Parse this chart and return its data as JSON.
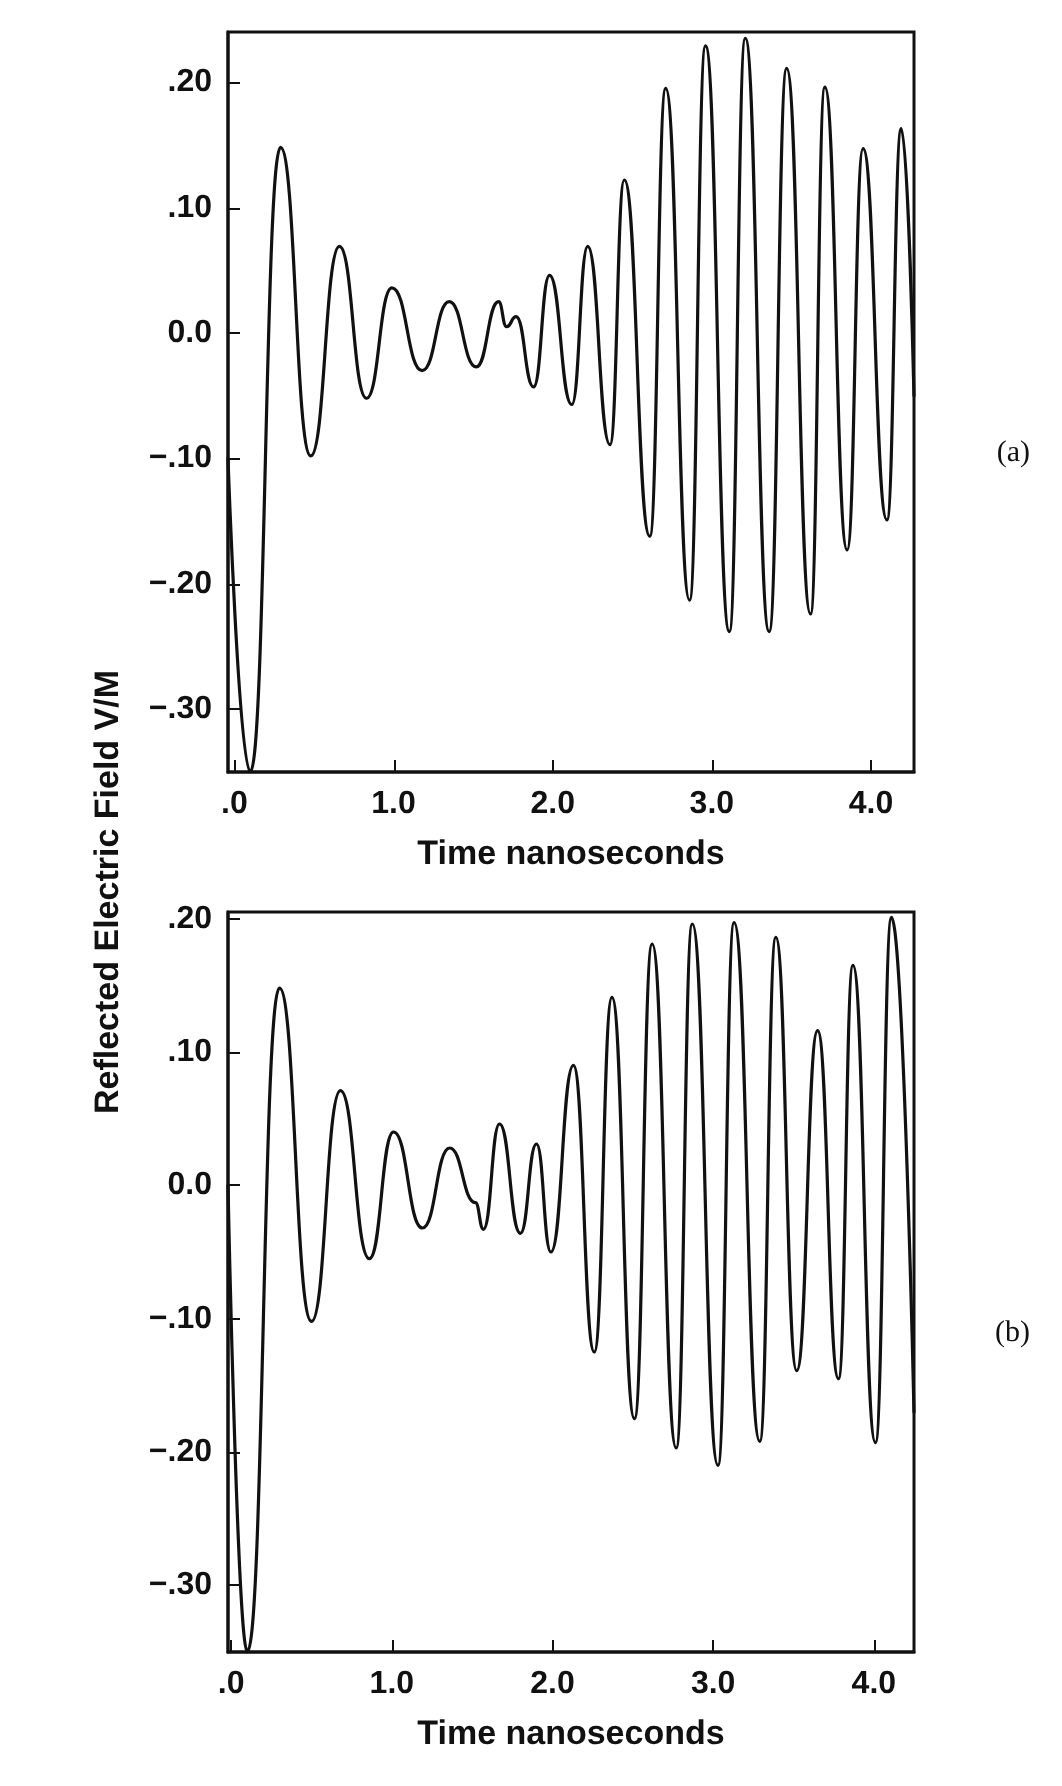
{
  "chart_data": [
    {
      "type": "line",
      "xlabel": "Time nanoseconds",
      "ylabel": "Reflected Electric Field V/M",
      "annotations": [
        "(a)"
      ],
      "xlim": [
        -0.04,
        4.27
      ],
      "ylim": [
        -0.35,
        0.24
      ],
      "xticks": [
        {
          "value": 0,
          "label": ".0"
        },
        {
          "value": 1,
          "label": "1.0"
        },
        {
          "value": 2,
          "label": "2.0"
        },
        {
          "value": 3,
          "label": "3.0"
        },
        {
          "value": 4,
          "label": "4.0"
        }
      ],
      "yticks": [
        {
          "value": 0.2,
          "label": ".20"
        },
        {
          "value": 0.1,
          "label": ".10"
        },
        {
          "value": 0,
          "label": "0.0"
        },
        {
          "value": -0.1,
          "label": "−.10"
        },
        {
          "value": -0.2,
          "label": "−.20"
        },
        {
          "value": -0.3,
          "label": "−.30"
        }
      ],
      "series": [
        {
          "color": "#111111",
          "x": [
            -0.04,
            0.1,
            0.29,
            0.48,
            0.66,
            0.83,
            0.99,
            1.18,
            1.35,
            1.52,
            1.66,
            1.71,
            1.77,
            1.88,
            1.98,
            2.12,
            2.22,
            2.36,
            2.45,
            2.61,
            2.71,
            2.86,
            2.96,
            3.11,
            3.21,
            3.36,
            3.47,
            3.62,
            3.71,
            3.85,
            3.95,
            4.1,
            4.19,
            4.27
          ],
          "values": [
            -0.1,
            -0.35,
            0.148,
            -0.098,
            0.069,
            -0.052,
            0.036,
            -0.03,
            0.025,
            -0.027,
            0.025,
            0.005,
            0.013,
            -0.043,
            0.046,
            -0.057,
            0.069,
            -0.089,
            0.122,
            -0.162,
            0.195,
            -0.213,
            0.229,
            -0.238,
            0.235,
            -0.238,
            0.211,
            -0.224,
            0.196,
            -0.173,
            0.147,
            -0.149,
            0.163,
            -0.05
          ]
        }
      ]
    },
    {
      "type": "line",
      "xlabel": "Time nanoseconds",
      "annotations": [
        "(b)"
      ],
      "xlim": [
        -0.02,
        4.25
      ],
      "ylim": [
        -0.35,
        0.205
      ],
      "xticks": [
        {
          "value": 0,
          "label": ".0"
        },
        {
          "value": 1,
          "label": "1.0"
        },
        {
          "value": 2,
          "label": "2.0"
        },
        {
          "value": 3,
          "label": "3.0"
        },
        {
          "value": 4,
          "label": "4.0"
        }
      ],
      "yticks": [
        {
          "value": 0.2,
          "label": ".20"
        },
        {
          "value": 0.1,
          "label": ".10"
        },
        {
          "value": 0,
          "label": "0.0"
        },
        {
          "value": -0.1,
          "label": "−.10"
        },
        {
          "value": -0.2,
          "label": "−.20"
        },
        {
          "value": -0.3,
          "label": "−.30"
        }
      ],
      "series": [
        {
          "color": "#111111",
          "x": [
            -0.02,
            0.1,
            0.3,
            0.5,
            0.68,
            0.86,
            1.01,
            1.19,
            1.36,
            1.52,
            1.57,
            1.67,
            1.8,
            1.9,
            1.99,
            2.13,
            2.26,
            2.37,
            2.51,
            2.62,
            2.77,
            2.87,
            3.03,
            3.13,
            3.29,
            3.39,
            3.52,
            3.65,
            3.78,
            3.87,
            4.01,
            4.11,
            4.25
          ],
          "values": [
            0.0,
            -0.35,
            0.148,
            -0.102,
            0.071,
            -0.055,
            0.04,
            -0.032,
            0.028,
            -0.013,
            -0.033,
            0.046,
            -0.036,
            0.031,
            -0.05,
            0.09,
            -0.125,
            0.141,
            -0.175,
            0.181,
            -0.197,
            0.196,
            -0.21,
            0.197,
            -0.192,
            0.186,
            -0.139,
            0.116,
            -0.145,
            0.165,
            -0.193,
            0.201,
            -0.17
          ]
        }
      ]
    }
  ]
}
